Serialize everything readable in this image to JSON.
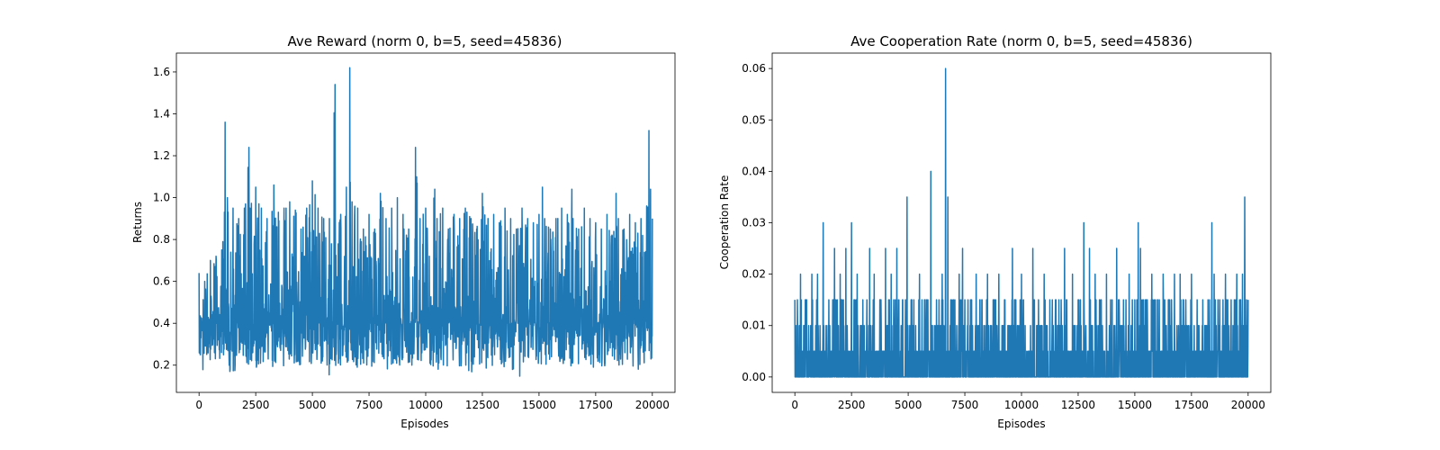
{
  "chart_data": [
    {
      "type": "line",
      "title": "Ave Reward (norm 0, b=5, seed=45836)",
      "xlabel": "Episodes",
      "ylabel": "Returns",
      "xlim": [
        -1000,
        21000
      ],
      "ylim": [
        0.07,
        1.69
      ],
      "xticks": [
        0,
        2500,
        5000,
        7500,
        10000,
        12500,
        15000,
        17500,
        20000
      ],
      "xtick_labels": [
        "0",
        "2500",
        "5000",
        "7500",
        "10000",
        "12500",
        "15000",
        "17500",
        "20000"
      ],
      "yticks": [
        0.2,
        0.4,
        0.6,
        0.8,
        1.0,
        1.2,
        1.4,
        1.6
      ],
      "ytick_labels": [
        "0.2",
        "0.4",
        "0.6",
        "0.8",
        "1.0",
        "1.2",
        "1.4",
        "1.6"
      ],
      "grid": false,
      "series_color": "#1f77b4",
      "series": [
        {
          "x": [
            0,
            250,
            500,
            750,
            1000,
            1150,
            1250,
            1500,
            1750,
            2000,
            2200,
            2250,
            2500,
            2750,
            3000,
            3300,
            3500,
            3750,
            4000,
            4250,
            4500,
            4750,
            5000,
            5250,
            5500,
            5750,
            6000,
            6250,
            6500,
            6650,
            6750,
            7000,
            7250,
            7500,
            7750,
            8000,
            8250,
            8500,
            8750,
            9000,
            9250,
            9550,
            9750,
            10000,
            10400,
            10500,
            10750,
            11000,
            11250,
            11500,
            11750,
            12000,
            12250,
            12500,
            12750,
            13000,
            13250,
            13500,
            13750,
            14000,
            14250,
            14500,
            14750,
            15000,
            15150,
            15250,
            15500,
            15750,
            16000,
            16250,
            16450,
            16500,
            16750,
            17000,
            17250,
            17500,
            17750,
            18000,
            18400,
            18500,
            18750,
            19000,
            19250,
            19500,
            19750,
            19850,
            20000
          ],
          "y_high": [
            0.64,
            0.6,
            0.7,
            0.72,
            0.75,
            1.36,
            1.0,
            0.95,
            0.9,
            0.95,
            1.24,
            0.95,
            1.05,
            0.95,
            0.9,
            1.06,
            0.93,
            0.95,
            0.98,
            0.94,
            0.85,
            0.95,
            1.08,
            0.95,
            0.9,
            0.9,
            1.54,
            0.92,
            1.05,
            1.62,
            0.98,
            0.95,
            0.85,
            0.92,
            0.85,
            1.02,
            0.9,
            0.95,
            1.0,
            0.92,
            0.85,
            1.24,
            0.9,
            0.95,
            1.04,
            0.9,
            0.95,
            0.85,
            0.92,
            0.9,
            0.95,
            0.9,
            0.85,
            1.02,
            0.9,
            0.92,
            0.88,
            0.95,
            0.9,
            0.85,
            0.95,
            0.9,
            0.88,
            0.92,
            1.05,
            0.9,
            0.85,
            0.9,
            0.95,
            0.92,
            1.04,
            0.9,
            0.85,
            0.95,
            0.9,
            0.88,
            0.85,
            0.92,
            1.02,
            0.9,
            0.85,
            0.92,
            0.88,
            0.9,
            0.96,
            1.32,
            0.9
          ],
          "y_low": [
            0.2,
            0.16,
            0.2,
            0.19,
            0.2,
            0.2,
            0.18,
            0.14,
            0.2,
            0.21,
            0.2,
            0.2,
            0.19,
            0.18,
            0.19,
            0.18,
            0.2,
            0.17,
            0.2,
            0.2,
            0.19,
            0.2,
            0.2,
            0.2,
            0.18,
            0.12,
            0.2,
            0.19,
            0.19,
            0.2,
            0.2,
            0.18,
            0.2,
            0.19,
            0.2,
            0.2,
            0.18,
            0.17,
            0.2,
            0.18,
            0.19,
            0.2,
            0.2,
            0.2,
            0.19,
            0.18,
            0.16,
            0.19,
            0.2,
            0.18,
            0.19,
            0.16,
            0.2,
            0.2,
            0.17,
            0.19,
            0.2,
            0.17,
            0.18,
            0.15,
            0.12,
            0.19,
            0.2,
            0.18,
            0.2,
            0.19,
            0.2,
            0.18,
            0.2,
            0.17,
            0.2,
            0.2,
            0.19,
            0.18,
            0.2,
            0.17,
            0.19,
            0.2,
            0.2,
            0.17,
            0.19,
            0.2,
            0.19,
            0.17,
            0.2,
            0.2,
            0.18
          ],
          "mean": 0.4
        }
      ]
    },
    {
      "type": "line",
      "title": "Ave Cooperation Rate (norm 0, b=5, seed=45836)",
      "xlabel": "Episodes",
      "ylabel": "Cooperation Rate",
      "xlim": [
        -1000,
        21000
      ],
      "ylim": [
        -0.003,
        0.063
      ],
      "xticks": [
        0,
        2500,
        5000,
        7500,
        10000,
        12500,
        15000,
        17500,
        20000
      ],
      "xtick_labels": [
        "0",
        "2500",
        "5000",
        "7500",
        "10000",
        "12500",
        "15000",
        "17500",
        "20000"
      ],
      "yticks": [
        0.0,
        0.01,
        0.02,
        0.03,
        0.04,
        0.05,
        0.06
      ],
      "ytick_labels": [
        "0.00",
        "0.01",
        "0.02",
        "0.03",
        "0.04",
        "0.05",
        "0.06"
      ],
      "grid": false,
      "series_color": "#1f77b4",
      "series": [
        {
          "x": [
            0,
            250,
            500,
            750,
            1000,
            1250,
            1500,
            1750,
            2000,
            2250,
            2500,
            2750,
            3000,
            3300,
            3500,
            3750,
            4000,
            4250,
            4500,
            4750,
            4950,
            5250,
            5500,
            5750,
            6000,
            6250,
            6500,
            6650,
            6750,
            7000,
            7250,
            7400,
            7750,
            8000,
            8250,
            8500,
            8750,
            9000,
            9250,
            9600,
            9750,
            10000,
            10500,
            10750,
            11000,
            11250,
            11500,
            11900,
            12000,
            12250,
            12500,
            12750,
            13000,
            13250,
            13500,
            13750,
            14000,
            14200,
            14500,
            14750,
            15000,
            15150,
            15250,
            15500,
            15750,
            16000,
            16250,
            16500,
            16750,
            17000,
            17250,
            17500,
            17750,
            18000,
            18400,
            18500,
            18750,
            19000,
            19250,
            19500,
            19750,
            19850,
            20000
          ],
          "y_high": [
            0.015,
            0.02,
            0.015,
            0.02,
            0.02,
            0.03,
            0.015,
            0.025,
            0.02,
            0.025,
            0.03,
            0.02,
            0.015,
            0.025,
            0.02,
            0.015,
            0.025,
            0.02,
            0.025,
            0.015,
            0.035,
            0.015,
            0.02,
            0.015,
            0.04,
            0.015,
            0.02,
            0.06,
            0.035,
            0.015,
            0.02,
            0.025,
            0.015,
            0.02,
            0.015,
            0.02,
            0.015,
            0.02,
            0.015,
            0.025,
            0.015,
            0.02,
            0.025,
            0.015,
            0.02,
            0.015,
            0.015,
            0.025,
            0.015,
            0.02,
            0.015,
            0.03,
            0.025,
            0.02,
            0.015,
            0.02,
            0.015,
            0.025,
            0.015,
            0.02,
            0.015,
            0.03,
            0.025,
            0.015,
            0.02,
            0.015,
            0.02,
            0.015,
            0.02,
            0.02,
            0.015,
            0.02,
            0.015,
            0.015,
            0.03,
            0.02,
            0.015,
            0.02,
            0.015,
            0.02,
            0.02,
            0.035,
            0.015
          ],
          "y_low": [
            0,
            0,
            0,
            0,
            0,
            0,
            0,
            0,
            0,
            0,
            0,
            0,
            0,
            0,
            0,
            0,
            0,
            0,
            0,
            0,
            0,
            0,
            0,
            0,
            0,
            0,
            0,
            0,
            0,
            0,
            0,
            0,
            0,
            0,
            0,
            0,
            0,
            0,
            0,
            0,
            0,
            0,
            0,
            0,
            0,
            0,
            0,
            0,
            0,
            0,
            0,
            0,
            0,
            0,
            0,
            0,
            0,
            0,
            0,
            0,
            0,
            0,
            0,
            0,
            0,
            0,
            0,
            0,
            0,
            0,
            0,
            0,
            0,
            0,
            0,
            0,
            0,
            0,
            0,
            0,
            0,
            0,
            0
          ],
          "mean": 0.005
        }
      ]
    }
  ]
}
